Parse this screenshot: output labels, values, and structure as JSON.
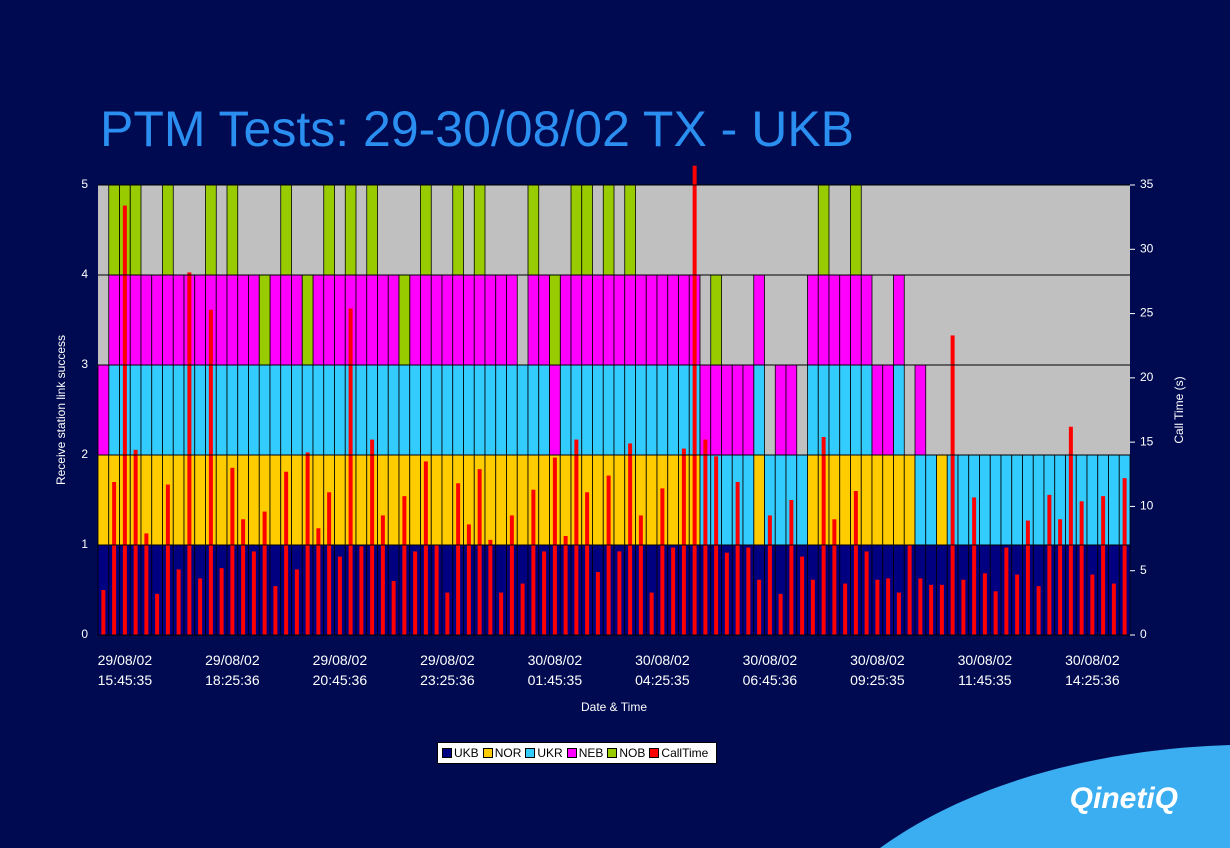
{
  "chart_data": {
    "type": "stacked-bar",
    "title": "PTM Tests: 29-30/08/02 TX - UKB",
    "x_label": "Date & Time",
    "y_label": "Receive station link success",
    "y2_label": "Call Time (s)",
    "categories": [
      null,
      null,
      "29/08/02\n15:45:35",
      null,
      null,
      null,
      null,
      null,
      null,
      null,
      null,
      null,
      "29/08/02\n18:25:36",
      null,
      null,
      null,
      null,
      null,
      null,
      null,
      null,
      null,
      "29/08/02\n20:45:36",
      null,
      null,
      null,
      null,
      null,
      null,
      null,
      null,
      null,
      "29/08/02\n23:25:36",
      null,
      null,
      null,
      null,
      null,
      null,
      null,
      null,
      null,
      "30/08/02\n01:45:35",
      null,
      null,
      null,
      null,
      null,
      null,
      null,
      null,
      null,
      "30/08/02\n04:25:35",
      null,
      null,
      null,
      null,
      null,
      null,
      null,
      null,
      null,
      "30/08/02\n06:45:36",
      null,
      null,
      null,
      null,
      null,
      null,
      null,
      null,
      null,
      "30/08/02\n09:25:35",
      null,
      null,
      null,
      null,
      null,
      null,
      null,
      null,
      null,
      "30/08/02\n11:45:35",
      null,
      null,
      null,
      null,
      null,
      null,
      null,
      null,
      null,
      "30/08/02\n14:25:36",
      null,
      null,
      null
    ],
    "series": [
      {
        "name": "UKB",
        "color": "#000080",
        "values": [
          1,
          1,
          1,
          1,
          1,
          1,
          1,
          1,
          1,
          1,
          1,
          1,
          1,
          1,
          1,
          1,
          1,
          1,
          1,
          1,
          1,
          1,
          1,
          1,
          1,
          1,
          1,
          1,
          1,
          1,
          1,
          1,
          1,
          1,
          1,
          1,
          1,
          1,
          1,
          1,
          1,
          1,
          1,
          1,
          1,
          1,
          1,
          1,
          1,
          1,
          1,
          1,
          1,
          1,
          1,
          1,
          1,
          1,
          1,
          1,
          1,
          1,
          1,
          1,
          1,
          1,
          1,
          1,
          1,
          1,
          1,
          1,
          1,
          1,
          1,
          1,
          1,
          1,
          1,
          1,
          1,
          1,
          1,
          1,
          1,
          1,
          1,
          1,
          1,
          1,
          1,
          1,
          1,
          1,
          1,
          1
        ]
      },
      {
        "name": "NOR",
        "color": "#ffcc00",
        "values": [
          1,
          1,
          1,
          1,
          1,
          1,
          1,
          1,
          1,
          1,
          1,
          1,
          1,
          1,
          1,
          1,
          1,
          1,
          1,
          1,
          1,
          1,
          1,
          1,
          1,
          1,
          1,
          1,
          1,
          1,
          1,
          1,
          1,
          1,
          1,
          1,
          1,
          1,
          1,
          1,
          1,
          1,
          1,
          1,
          1,
          1,
          1,
          1,
          1,
          1,
          1,
          1,
          1,
          1,
          1,
          1,
          0,
          0,
          0,
          0,
          0,
          1,
          0,
          0,
          0,
          0,
          1,
          1,
          1,
          1,
          1,
          1,
          1,
          1,
          1,
          1,
          0,
          0,
          1,
          0,
          0,
          0,
          0,
          0,
          0,
          0,
          0,
          0,
          0,
          0,
          0,
          0,
          0,
          0,
          0,
          0
        ]
      },
      {
        "name": "UKR",
        "color": "#33ccff",
        "values": [
          0,
          1,
          1,
          1,
          1,
          1,
          1,
          1,
          1,
          1,
          1,
          1,
          1,
          1,
          1,
          1,
          1,
          1,
          1,
          1,
          1,
          1,
          1,
          1,
          1,
          1,
          1,
          1,
          1,
          1,
          1,
          1,
          1,
          1,
          1,
          1,
          1,
          1,
          1,
          1,
          1,
          1,
          0,
          1,
          1,
          1,
          1,
          1,
          1,
          1,
          1,
          1,
          1,
          1,
          1,
          1,
          1,
          1,
          1,
          1,
          1,
          1,
          1,
          1,
          1,
          1,
          1,
          1,
          1,
          1,
          1,
          1,
          0,
          0,
          1,
          0,
          1,
          1,
          0,
          1,
          1,
          1,
          1,
          1,
          1,
          1,
          1,
          1,
          1,
          1,
          1,
          1,
          1,
          1,
          1,
          1
        ]
      },
      {
        "name": "NEB",
        "color": "#ff00ff",
        "values": [
          1,
          1,
          1,
          1,
          1,
          1,
          1,
          1,
          1,
          1,
          1,
          1,
          1,
          1,
          1,
          0,
          1,
          1,
          1,
          0,
          1,
          1,
          1,
          1,
          1,
          1,
          1,
          1,
          0,
          1,
          1,
          1,
          1,
          1,
          1,
          1,
          1,
          1,
          1,
          0,
          1,
          1,
          1,
          1,
          1,
          1,
          1,
          1,
          1,
          1,
          1,
          1,
          1,
          1,
          1,
          1,
          1,
          1,
          1,
          1,
          1,
          1,
          0,
          1,
          1,
          0,
          1,
          1,
          1,
          1,
          1,
          1,
          1,
          1,
          1,
          0,
          1,
          0,
          0,
          0,
          0,
          0,
          0,
          0,
          0,
          0,
          0,
          0,
          0,
          0,
          0,
          0,
          0,
          0,
          0,
          0
        ]
      },
      {
        "name": "NOB",
        "color": "#99cc00",
        "values": [
          0,
          1,
          1,
          1,
          0,
          0,
          1,
          0,
          0,
          0,
          1,
          0,
          1,
          0,
          0,
          1,
          0,
          1,
          0,
          1,
          0,
          1,
          0,
          1,
          0,
          1,
          0,
          0,
          1,
          0,
          1,
          0,
          0,
          1,
          0,
          1,
          0,
          0,
          0,
          0,
          1,
          0,
          1,
          0,
          1,
          1,
          0,
          1,
          0,
          1,
          0,
          0,
          0,
          0,
          0,
          0,
          0,
          1,
          0,
          0,
          0,
          0,
          0,
          0,
          0,
          0,
          0,
          1,
          0,
          0,
          1,
          0,
          0,
          0,
          0,
          0,
          0,
          0,
          0,
          0,
          0,
          0,
          0,
          0,
          0,
          0,
          0,
          0,
          0,
          0,
          0,
          0,
          0,
          0,
          0,
          0
        ]
      },
      {
        "name": "CallTime",
        "color": "#ff0000",
        "axis": "y2",
        "values": [
          3.5,
          11.9,
          33.4,
          14.4,
          7.9,
          3.2,
          11.7,
          5.1,
          28.2,
          4.4,
          25.3,
          5.2,
          13,
          9,
          6.5,
          9.6,
          3.8,
          12.7,
          5.1,
          14.2,
          8.3,
          11.1,
          6.1,
          25.4,
          6.9,
          15.2,
          9.3,
          4.2,
          10.8,
          6.5,
          13.5,
          7,
          3.3,
          11.8,
          8.6,
          12.9,
          7.4,
          3.3,
          9.3,
          4,
          11.3,
          6.5,
          13.8,
          7.7,
          15.2,
          11.1,
          4.9,
          12.4,
          6.5,
          14.9,
          9.3,
          3.3,
          11.4,
          6.8,
          14.5,
          36.5,
          15.2,
          13.9,
          6.4,
          11.9,
          6.8,
          4.3,
          9.3,
          3.2,
          10.5,
          6.1,
          4.3,
          15.4,
          9,
          4,
          11.2,
          6.5,
          4.3,
          4.4,
          3.3,
          7,
          4.4,
          3.9,
          3.9,
          23.3,
          4.3,
          10.7,
          4.8,
          3.4,
          6.8,
          4.7,
          8.9,
          3.8,
          10.9,
          9,
          16.2,
          10.4,
          4.7,
          10.8,
          4,
          12.2
        ]
      }
    ],
    "ylim": [
      0,
      5
    ],
    "yticks": [
      0,
      1,
      2,
      3,
      4,
      5
    ],
    "y2lim": [
      0,
      35
    ],
    "y2ticks": [
      0,
      5,
      10,
      15,
      20,
      25,
      30,
      35
    ],
    "grid": true,
    "legend": "bottom"
  },
  "logo": "QinetiQ"
}
